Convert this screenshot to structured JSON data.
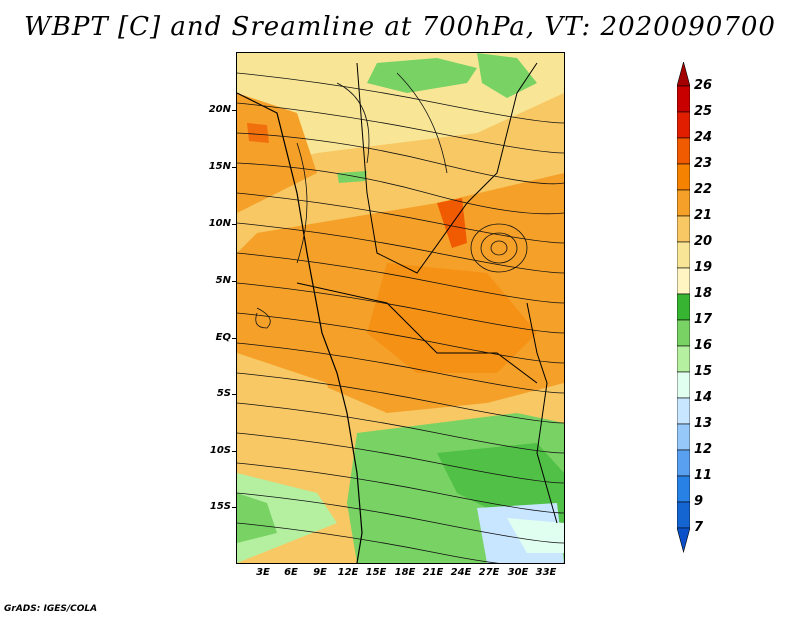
{
  "title": "WBPT [C] and Sreamline at 700hPa, VT: 2020090700",
  "footer": "GrADS: IGES/COLA",
  "map": {
    "lat_labels": [
      "20N",
      "15N",
      "10N",
      "5N",
      "EQ",
      "5S",
      "10S",
      "15S"
    ],
    "lon_labels": [
      "3E",
      "6E",
      "9E",
      "12E",
      "15E",
      "18E",
      "21E",
      "24E",
      "27E",
      "30E",
      "33E"
    ]
  },
  "colorbar": {
    "levels": [
      "26",
      "25",
      "24",
      "23",
      "22",
      "21",
      "20",
      "19",
      "18",
      "17",
      "16",
      "15",
      "14",
      "13",
      "12",
      "11",
      "9",
      "7"
    ],
    "colors": [
      "#a50000",
      "#c80000",
      "#e11e00",
      "#f05a00",
      "#f58200",
      "#f5a028",
      "#f8c864",
      "#f8e696",
      "#fff5c3",
      "#37b432",
      "#78d264",
      "#b4f0a0",
      "#e1fff0",
      "#c8e6ff",
      "#96c8fa",
      "#5aa0f0",
      "#2882e6",
      "#1464d2",
      "#0a50c8"
    ]
  }
}
